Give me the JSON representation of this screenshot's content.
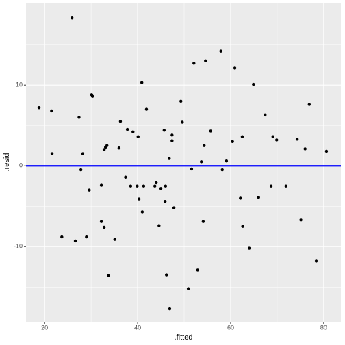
{
  "chart_data": {
    "type": "scatter",
    "x_label": ".fitted",
    "y_label": ".resid",
    "x": [
      18.8,
      21.5,
      21.6,
      23.7,
      25.9,
      26.6,
      27.4,
      27.8,
      28.2,
      29.0,
      29.6,
      30.1,
      30.3,
      32.2,
      32.2,
      32.8,
      32.8,
      33.1,
      33.4,
      33.7,
      35.1,
      36.0,
      36.3,
      37.4,
      37.8,
      38.5,
      39.0,
      39.9,
      40.1,
      40.3,
      40.9,
      41.0,
      41.3,
      41.9,
      43.7,
      44.0,
      44.6,
      45.0,
      45.7,
      46.0,
      45.9,
      46.2,
      46.8,
      46.9,
      47.4,
      47.4,
      47.8,
      49.3,
      49.6,
      50.9,
      51.6,
      52.1,
      52.9,
      53.7,
      54.1,
      54.3,
      54.6,
      55.7,
      57.9,
      58.2,
      59.1,
      60.4,
      60.9,
      62.1,
      62.5,
      62.6,
      64.0,
      64.9,
      66.0,
      67.4,
      68.7,
      69.1,
      69.9,
      71.9,
      74.3,
      75.1,
      76.0,
      76.9,
      78.4,
      80.6
    ],
    "values": [
      7.2,
      6.8,
      1.5,
      -8.8,
      18.3,
      -9.3,
      6.0,
      -0.5,
      1.5,
      -8.8,
      -3.0,
      8.8,
      8.6,
      -2.4,
      -6.9,
      -7.6,
      2.0,
      2.3,
      2.5,
      -13.6,
      -9.1,
      2.2,
      5.5,
      -1.4,
      4.5,
      -2.5,
      4.2,
      -2.5,
      3.6,
      -4.1,
      10.3,
      -5.7,
      -2.5,
      7.0,
      -2.5,
      -2.1,
      -7.4,
      -2.8,
      4.4,
      -2.5,
      -4.4,
      -13.5,
      0.9,
      -17.7,
      3.8,
      3.1,
      -5.2,
      8.0,
      5.4,
      -15.2,
      -0.4,
      12.7,
      -12.9,
      0.5,
      -6.9,
      2.5,
      13.0,
      4.3,
      14.2,
      -0.5,
      0.6,
      3.0,
      12.1,
      -4.0,
      3.6,
      -7.5,
      -10.2,
      10.1,
      -3.9,
      6.3,
      -2.5,
      3.6,
      3.2,
      -2.5,
      3.3,
      -6.7,
      2.1,
      7.6,
      -11.8,
      1.8
    ],
    "color": "#000000",
    "hline": {
      "y": 0,
      "color": "#0000ff"
    },
    "xlim": [
      16,
      83.7
    ],
    "ylim": [
      -19.3,
      20.1
    ],
    "xticks": [
      20,
      40,
      60,
      80
    ],
    "yticks": [
      -10,
      0,
      10
    ],
    "xminor": [
      30,
      50,
      70
    ],
    "yminor": [
      -15,
      -5,
      5,
      15
    ],
    "grid": true,
    "background": "#ebebeb"
  }
}
